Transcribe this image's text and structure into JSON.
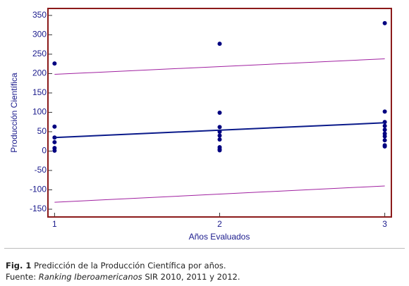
{
  "chart_data": {
    "type": "scatter",
    "xlabel": "Años Evaluados",
    "ylabel": "Producción Científica",
    "xlim": [
      0.96,
      3.04
    ],
    "ylim": [
      -170,
      368
    ],
    "xticks": [
      1,
      2,
      3
    ],
    "yticks": [
      -150,
      -100,
      -50,
      0,
      50,
      100,
      150,
      200,
      250,
      300,
      350
    ],
    "series": [
      {
        "mode": "markers",
        "color": "#000080",
        "x": [
          1,
          1,
          1,
          1,
          1,
          1,
          2,
          2,
          2,
          2,
          2,
          2,
          2,
          2,
          2,
          3,
          3,
          3,
          3,
          3,
          3,
          3,
          3,
          3,
          3
        ],
        "values": [
          226,
          63,
          35,
          23,
          8,
          1,
          277,
          99,
          62,
          50,
          40,
          30,
          10,
          5,
          2,
          330,
          102,
          75,
          65,
          55,
          45,
          38,
          28,
          15,
          12
        ]
      },
      {
        "mode": "line",
        "color": "#0a1a8a",
        "width": 2,
        "x": [
          1,
          3
        ],
        "values": [
          35,
          73
        ]
      },
      {
        "mode": "line",
        "color": "#a020a0",
        "width": 1,
        "x": [
          1,
          3
        ],
        "values": [
          198,
          238
        ]
      },
      {
        "mode": "line",
        "color": "#a020a0",
        "width": 1,
        "x": [
          1,
          3
        ],
        "values": [
          -132,
          -90
        ]
      }
    ]
  },
  "caption": {
    "label": "Fig. 1",
    "text": "Predicción de la Producción Científica por años.",
    "source_prefix": "Fuente:",
    "source_italic": "Ranking Iberoamericanos",
    "source_rest": "SIR 2010, 2011 y 2012."
  }
}
